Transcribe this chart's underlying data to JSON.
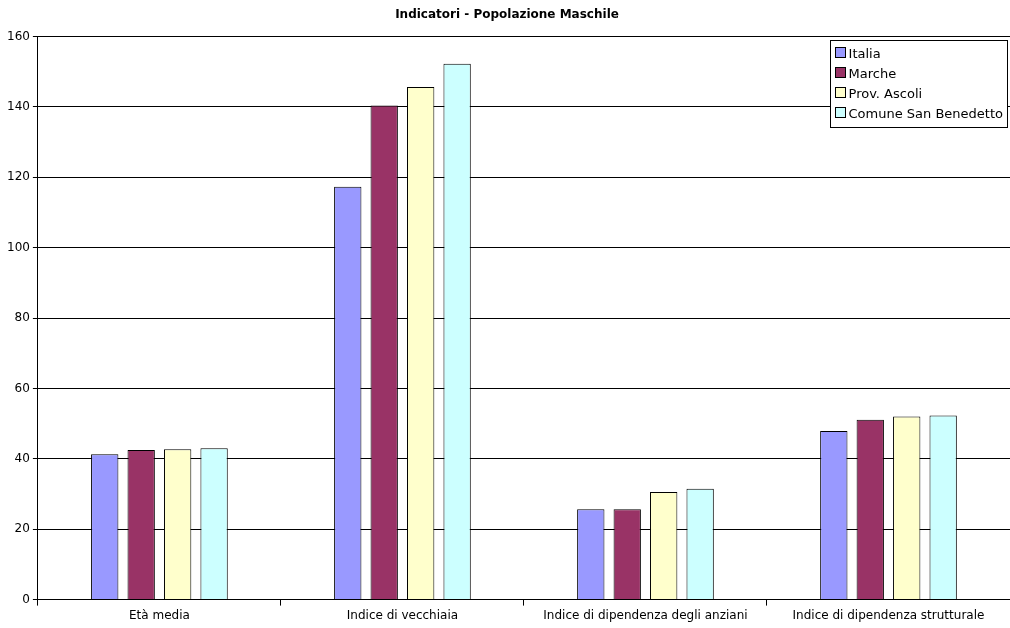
{
  "chart_data": {
    "type": "bar",
    "title": "Indicatori - Popolazione Maschile",
    "categories": [
      "Età media",
      "Indice di vecchiaia",
      "Indice di dipendenza degli anziani",
      "Indice di dipendenza strutturale"
    ],
    "series": [
      {
        "name": "Italia",
        "color": "#9999ff",
        "values": [
          41.3,
          117.3,
          25.7,
          47.9
        ]
      },
      {
        "name": "Marche",
        "color": "#993366",
        "values": [
          42.5,
          140.4,
          25.7,
          51.1
        ]
      },
      {
        "name": "Prov. Ascoli",
        "color": "#ffffcc",
        "values": [
          42.7,
          145.6,
          30.6,
          52.0
        ]
      },
      {
        "name": "Comune San Benedetto",
        "color": "#ccffff",
        "values": [
          43.0,
          152.2,
          31.5,
          52.3
        ]
      }
    ],
    "ylim": [
      0,
      160
    ],
    "yticks": [
      0,
      20,
      40,
      60,
      80,
      100,
      120,
      140,
      160
    ],
    "grid": "y",
    "legend": "top right"
  }
}
